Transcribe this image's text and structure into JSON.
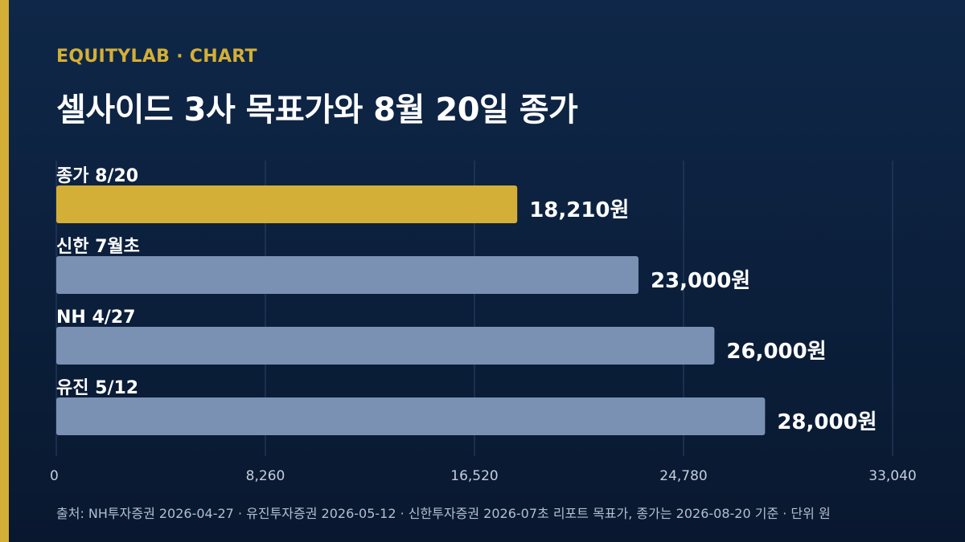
{
  "colors": {
    "accent": "#d4af37",
    "bar": "#7a91b4",
    "grid": "#2a4268"
  },
  "header": {
    "brand": "EQUITYLAB · CHART"
  },
  "footer": {
    "source": "출처: NH투자증권 2026-04-27 · 유진투자증권 2026-05-12 · 신한투자증권 2026-07초 리포트 목표가, 종가는 2026-08-20 기준 · 단위 원"
  },
  "chart_data": {
    "type": "bar",
    "orientation": "horizontal",
    "title": "셀사이드 3사 목표가와 8월 20일 종가",
    "categories": [
      "종가 8/20",
      "신한 7월초",
      "NH 4/27",
      "유진 5/12"
    ],
    "values": [
      18210,
      23000,
      26000,
      28000
    ],
    "value_labels": [
      "18,210원",
      "23,000원",
      "26,000원",
      "28,000원"
    ],
    "highlight_index": 0,
    "xlim": [
      0,
      33040
    ],
    "ticks": [
      0,
      8260,
      16520,
      24780,
      33040
    ],
    "tick_labels": [
      "0",
      "8,260",
      "16,520",
      "24,780",
      "33,040"
    ],
    "grid": true,
    "legend": "none"
  }
}
